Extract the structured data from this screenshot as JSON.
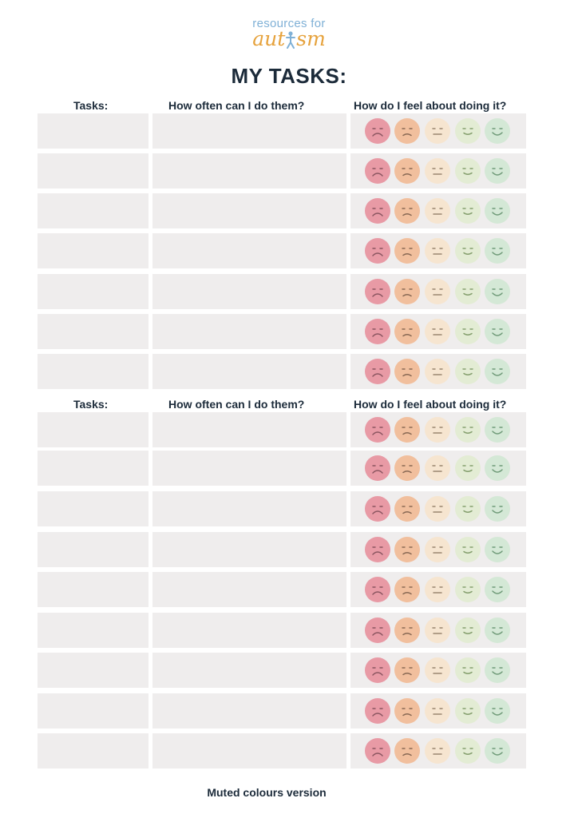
{
  "logo": {
    "top": "resources for",
    "main_left": "aut",
    "main_right": "sm"
  },
  "title": "MY TASKS:",
  "headers": {
    "tasks": "Tasks:",
    "how_often": "How often can I do them?",
    "feel": "How do I feel about doing it?"
  },
  "sections": [
    {
      "rows": 7
    },
    {
      "rows": 9
    }
  ],
  "faces": [
    {
      "name": "very-sad-face-icon",
      "mood": "very sad",
      "color": "#e89aa5",
      "stroke": "#8a5560"
    },
    {
      "name": "sad-face-icon",
      "mood": "sad",
      "color": "#f1bf9d",
      "stroke": "#8a6a55"
    },
    {
      "name": "neutral-face-icon",
      "mood": "neutral",
      "color": "#f6e5d0",
      "stroke": "#9a8670"
    },
    {
      "name": "content-face-icon",
      "mood": "content",
      "color": "#e3ecd4",
      "stroke": "#86a06f"
    },
    {
      "name": "happy-face-icon",
      "mood": "happy",
      "color": "#d4e8d6",
      "stroke": "#6f9a78"
    }
  ],
  "footer": "Muted colours version"
}
